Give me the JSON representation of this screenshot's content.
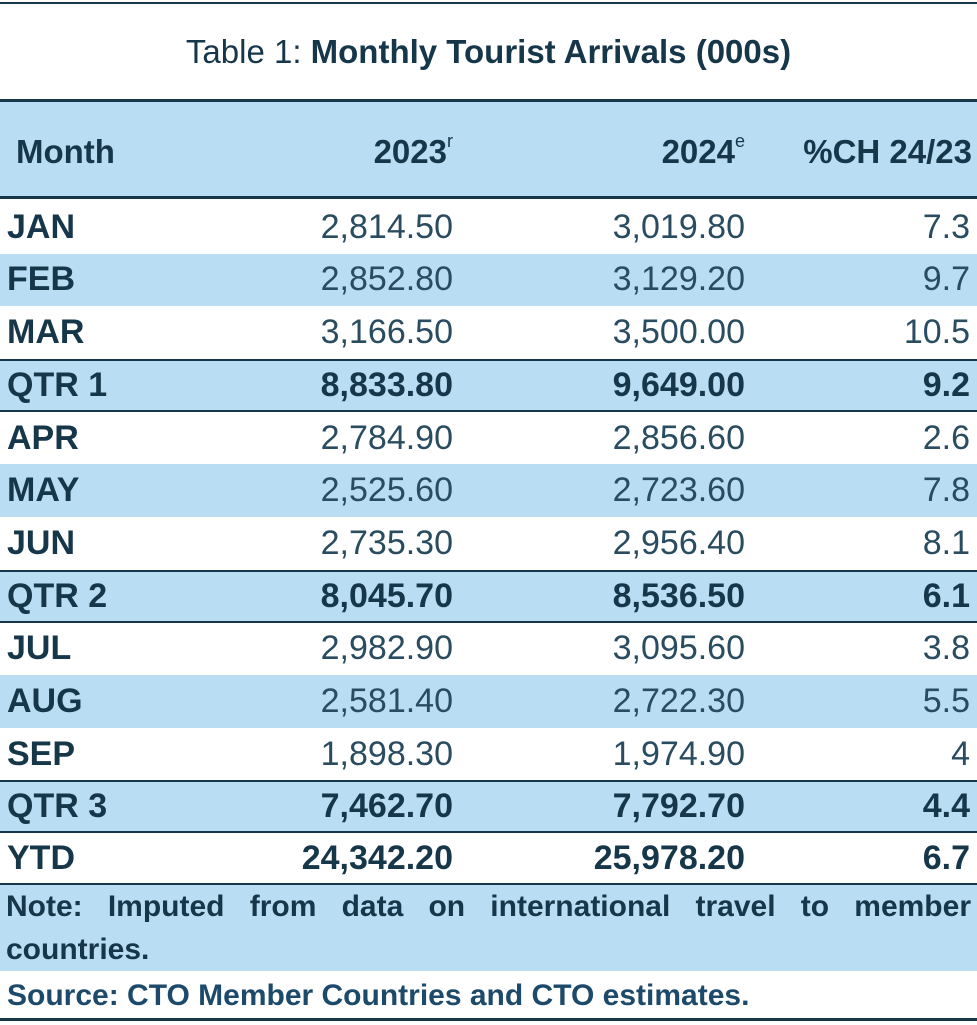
{
  "title": {
    "prefix": "Table 1: ",
    "main": "Monthly Tourist Arrivals (000s)"
  },
  "columns": {
    "month": "Month",
    "y2023": "2023",
    "y2023_sup": "r",
    "y2024": "2024",
    "y2024_sup": "e",
    "pct": "%CH 24/23"
  },
  "rows": [
    {
      "month": "JAN",
      "y2023": "2,814.50",
      "y2024": "3,019.80",
      "pct": "7.3"
    },
    {
      "month": "FEB",
      "y2023": "2,852.80",
      "y2024": "3,129.20",
      "pct": "9.7"
    },
    {
      "month": "MAR",
      "y2023": "3,166.50",
      "y2024": "3,500.00",
      "pct": "10.5"
    },
    {
      "month": "QTR 1",
      "y2023": "8,833.80",
      "y2024": "9,649.00",
      "pct": "9.2"
    },
    {
      "month": "APR",
      "y2023": "2,784.90",
      "y2024": "2,856.60",
      "pct": "2.6"
    },
    {
      "month": "MAY",
      "y2023": "2,525.60",
      "y2024": "2,723.60",
      "pct": "7.8"
    },
    {
      "month": "JUN",
      "y2023": "2,735.30",
      "y2024": "2,956.40",
      "pct": "8.1"
    },
    {
      "month": "QTR 2",
      "y2023": "8,045.70",
      "y2024": "8,536.50",
      "pct": "6.1"
    },
    {
      "month": "JUL",
      "y2023": "2,982.90",
      "y2024": "3,095.60",
      "pct": "3.8"
    },
    {
      "month": "AUG",
      "y2023": "2,581.40",
      "y2024": "2,722.30",
      "pct": "5.5"
    },
    {
      "month": "SEP",
      "y2023": "1,898.30",
      "y2024": "1,974.90",
      "pct": "4"
    },
    {
      "month": "QTR 3",
      "y2023": "7,462.70",
      "y2024": "7,792.70",
      "pct": "4.4"
    },
    {
      "month": "YTD",
      "y2023": "24,342.20",
      "y2024": "25,978.20",
      "pct": "6.7"
    }
  ],
  "note": "Note: Imputed from data on international travel to member countries.",
  "source": "Source: CTO Member Countries and CTO estimates.",
  "colors": {
    "shade": "#b9ddf2",
    "text": "#16364a"
  }
}
